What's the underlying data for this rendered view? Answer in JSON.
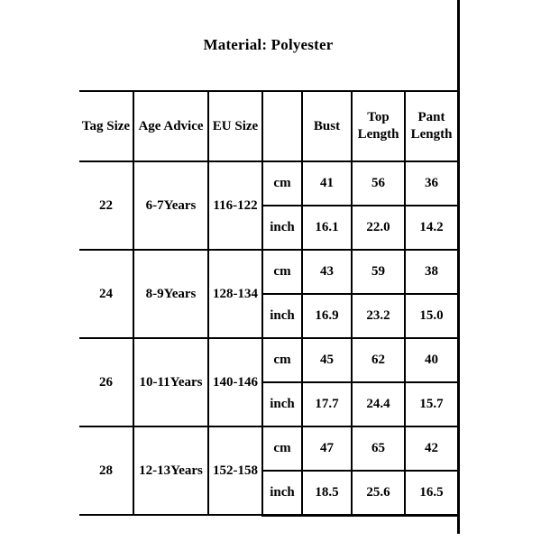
{
  "title": "Material: Polyester",
  "table": {
    "headers": [
      "Tag Size",
      "Age Advice",
      "EU Size",
      "",
      "Bust",
      "Top Length",
      "Pant Length"
    ],
    "unit_labels": [
      "cm",
      "inch"
    ],
    "rows": [
      {
        "tag_size": "22",
        "age_advice": "6-7Years",
        "eu_size": "116-122",
        "cm": [
          "41",
          "56",
          "36"
        ],
        "inch": [
          "16.1",
          "22.0",
          "14.2"
        ]
      },
      {
        "tag_size": "24",
        "age_advice": "8-9Years",
        "eu_size": "128-134",
        "cm": [
          "43",
          "59",
          "38"
        ],
        "inch": [
          "16.9",
          "23.2",
          "15.0"
        ]
      },
      {
        "tag_size": "26",
        "age_advice": "10-11Years",
        "eu_size": "140-146",
        "cm": [
          "45",
          "62",
          "40"
        ],
        "inch": [
          "17.7",
          "24.4",
          "15.7"
        ]
      },
      {
        "tag_size": "28",
        "age_advice": "12-13Years",
        "eu_size": "152-158",
        "cm": [
          "47",
          "65",
          "42"
        ],
        "inch": [
          "18.5",
          "25.6",
          "16.5"
        ]
      }
    ]
  },
  "colors": {
    "inch_value_bg": "#c3c3c3",
    "border": "#000000",
    "text": "#000000",
    "background": "#ffffff"
  }
}
